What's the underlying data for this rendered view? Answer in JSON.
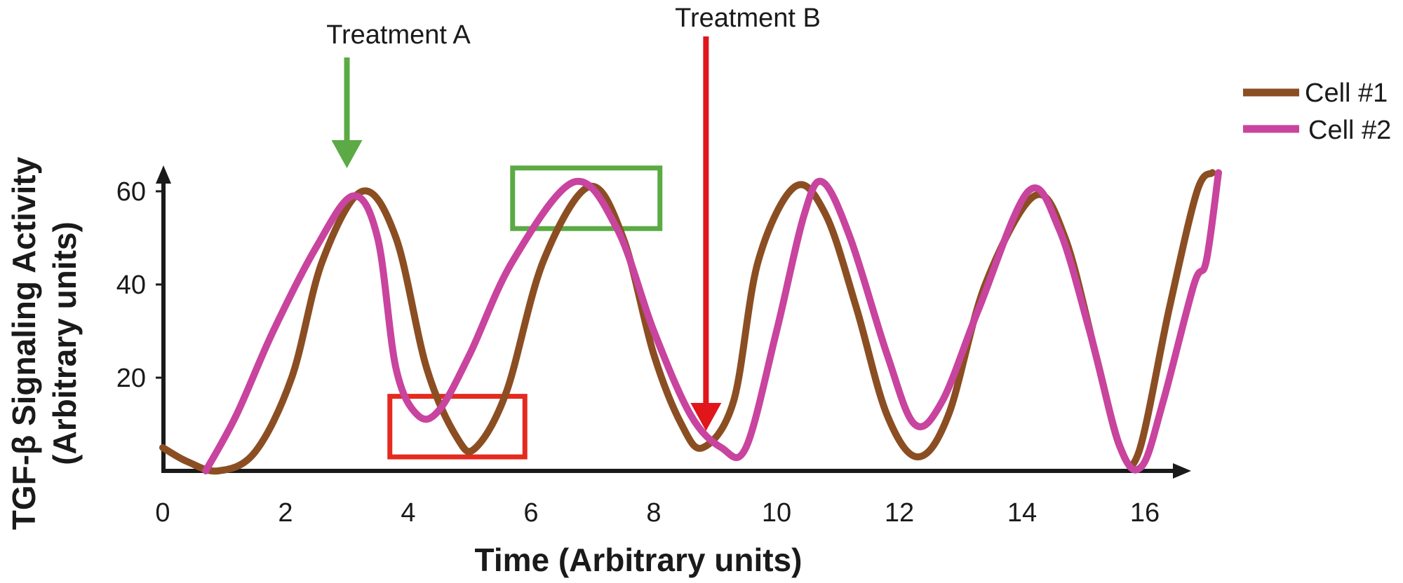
{
  "chart_data": {
    "type": "line",
    "xlabel": "Time (Arbitrary units)",
    "ylabel_line1": "TGF-β Signaling Activity",
    "ylabel_line2": "(Arbitrary units)",
    "xlim": [
      0,
      16.5
    ],
    "ylim": [
      0,
      65
    ],
    "x_ticks": [
      0,
      2,
      4,
      6,
      8,
      10,
      12,
      14,
      16
    ],
    "y_ticks": [
      20,
      40,
      60
    ],
    "grid": false,
    "legend_position": "top-right",
    "series": [
      {
        "name": "Cell #1",
        "color": "#8B4E22",
        "points": [
          [
            0,
            5
          ],
          [
            0.4,
            2
          ],
          [
            0.9,
            0
          ],
          [
            1.5,
            4
          ],
          [
            2.1,
            20
          ],
          [
            2.6,
            45
          ],
          [
            3.25,
            60
          ],
          [
            3.8,
            50
          ],
          [
            4.3,
            22
          ],
          [
            4.8,
            7
          ],
          [
            5.1,
            5
          ],
          [
            5.6,
            17
          ],
          [
            6.2,
            45
          ],
          [
            6.95,
            61
          ],
          [
            7.5,
            50
          ],
          [
            8.0,
            25
          ],
          [
            8.45,
            10
          ],
          [
            8.8,
            5
          ],
          [
            9.3,
            15
          ],
          [
            9.7,
            45
          ],
          [
            10.3,
            61
          ],
          [
            10.8,
            55
          ],
          [
            11.3,
            35
          ],
          [
            11.8,
            12
          ],
          [
            12.3,
            3
          ],
          [
            12.8,
            12
          ],
          [
            13.4,
            40
          ],
          [
            14.2,
            59
          ],
          [
            14.7,
            50
          ],
          [
            15.2,
            25
          ],
          [
            15.6,
            5
          ],
          [
            15.9,
            4
          ],
          [
            16.4,
            35
          ],
          [
            16.85,
            60
          ],
          [
            17.1,
            64
          ]
        ]
      },
      {
        "name": "Cell #2",
        "color": "#C8449E",
        "points": [
          [
            0.7,
            0
          ],
          [
            1.2,
            12
          ],
          [
            1.8,
            30
          ],
          [
            2.5,
            48
          ],
          [
            3.1,
            59
          ],
          [
            3.5,
            50
          ],
          [
            3.8,
            22
          ],
          [
            4.15,
            12
          ],
          [
            4.5,
            13
          ],
          [
            5.0,
            25
          ],
          [
            5.7,
            45
          ],
          [
            6.7,
            62
          ],
          [
            7.4,
            52
          ],
          [
            8.0,
            30
          ],
          [
            8.6,
            12
          ],
          [
            9.1,
            5
          ],
          [
            9.5,
            5
          ],
          [
            10.0,
            30
          ],
          [
            10.45,
            55
          ],
          [
            10.75,
            62
          ],
          [
            11.2,
            50
          ],
          [
            11.8,
            25
          ],
          [
            12.25,
            10
          ],
          [
            12.7,
            15
          ],
          [
            13.3,
            35
          ],
          [
            14.1,
            60
          ],
          [
            14.6,
            52
          ],
          [
            15.1,
            30
          ],
          [
            15.6,
            5
          ],
          [
            15.95,
            1
          ],
          [
            16.3,
            15
          ],
          [
            16.8,
            40
          ],
          [
            17.0,
            45
          ],
          [
            17.2,
            64
          ]
        ]
      }
    ],
    "annotations": [
      {
        "label": "Treatment A",
        "x": 3.0,
        "color": "#5BAA45"
      },
      {
        "label": "Treatment B",
        "x": 8.85,
        "color": "#E0161B"
      }
    ],
    "highlight_boxes": [
      {
        "color": "#5BAA45",
        "x0": 5.7,
        "x1": 8.1,
        "y0": 52,
        "y1": 65
      },
      {
        "color": "#E52A1F",
        "x0": 3.7,
        "x1": 5.9,
        "y0": 3,
        "y1": 16
      }
    ]
  }
}
